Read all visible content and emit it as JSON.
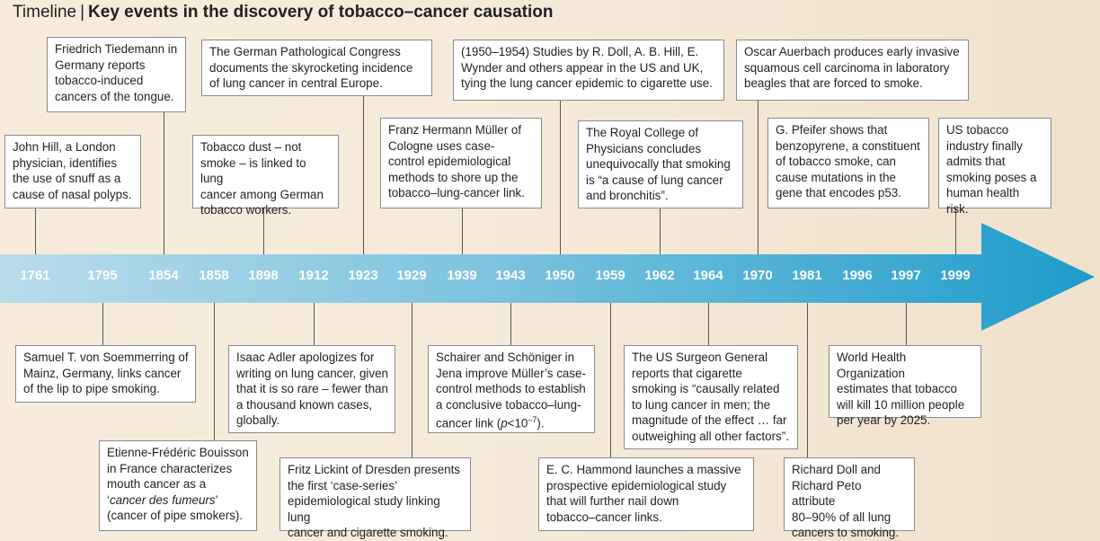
{
  "title": {
    "prefix": "Timeline",
    "separator": "|",
    "main": "Key events in the discovery of tobacco–cancer causation"
  },
  "colors": {
    "arrow_start": "#b9dcea",
    "arrow_end": "#1e9ccb",
    "year_text": "#ffffff"
  },
  "years": [
    "1761",
    "1795",
    "1854",
    "1858",
    "1898",
    "1912",
    "1923",
    "1929",
    "1939",
    "1943",
    "1950",
    "1959",
    "1962",
    "1964",
    "1970",
    "1981",
    "1996",
    "1997",
    "1999"
  ],
  "events_top": {
    "e1761": "John Hill, a London\nphysician, identifies\nthe use of snuff as a\ncause of nasal polyps.",
    "e1854": "Friedrich Tiedemann in\nGermany reports\ntobacco-induced\ncancers of the tongue.",
    "e1898": "Tobacco dust – not\nsmoke – is linked to lung\ncancer among German\ntobacco workers.",
    "e1923": "The German Pathological Congress\ndocuments the skyrocketing incidence\nof lung cancer in central Europe.",
    "e1939": "Franz Hermann Müller of\nCologne uses case-\ncontrol epidemiological\nmethods to shore up the\ntobacco–lung-cancer link.",
    "e1950": "(1950–1954) Studies by R. Doll, A. B. Hill, E.\nWynder and others appear in the US and UK,\ntying the lung cancer epidemic to cigarette use.",
    "e1962": "The Royal College of\nPhysicians concludes\nunequivocally  that smoking\nis “a cause of lung cancer\nand bronchitis”.",
    "e1970a": "Oscar Auerbach produces early invasive\nsquamous cell carcinoma in laboratory\nbeagles that are forced to smoke.",
    "e1970b": "G. Pfeifer shows that\nbenzopyrene, a constituent\nof tobacco smoke, can\ncause mutations in the\ngene that encodes p53.",
    "e1999": "US tobacco\nindustry finally\nadmits that\nsmoking poses a\nhuman health risk."
  },
  "events_bottom": {
    "e1795": "Samuel T. von Soemmerring of\nMainz, Germany, links cancer\nof the lip to pipe smoking.",
    "e1858_pre": "Etienne-Frédéric Bouisson\nin France characterizes\nmouth cancer as a\n‘",
    "e1858_italic": "cancer des fumeurs",
    "e1858_post": "’\n(cancer of pipe smokers).",
    "e1912": "Isaac Adler apologizes for\nwriting on lung cancer, given\nthat it is so rare – fewer than\na thousand known cases,\nglobally.",
    "e1929": "Fritz Lickint of Dresden presents\nthe first ‘case-series’\nepidemiological study linking lung\ncancer and cigarette smoking.",
    "e1943_pre": "Schairer and Schöniger in\nJena improve Müller’s case-\ncontrol methods to establish\na conclusive tobacco–lung-\ncancer link (",
    "e1943_p": "p",
    "e1943_lt": "<10",
    "e1943_exp": "–7",
    "e1943_post": ").",
    "e1959": "E. C. Hammond launches a massive\nprospective epidemiological study\nthat will further nail down\ntobacco–cancer links.",
    "e1964": "The US Surgeon General\nreports that cigarette\nsmoking is “causally related\nto lung cancer in men; the\nmagnitude of the effect … far\noutweighing all other factors”.",
    "e1981": "Richard Doll and\nRichard Peto attribute\n80–90% of all  lung\ncancers to smoking.",
    "e1997": "World Health Organization\nestimates that tobacco\nwill kill 10 million people\nper year by 2025."
  }
}
